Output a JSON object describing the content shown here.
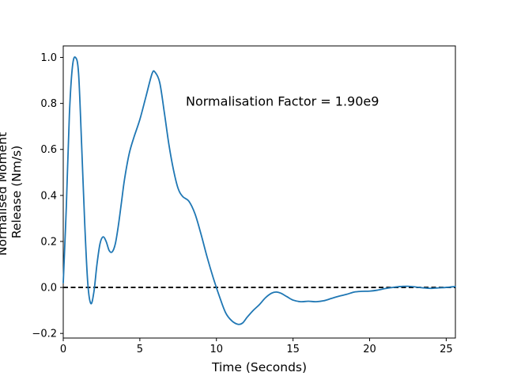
{
  "chart_data": {
    "type": "line",
    "title": "",
    "xlabel": "Time (Seconds)",
    "ylabel": [
      "Normalised Moment",
      "Release (Nm/s)"
    ],
    "xlim": [
      0,
      25.6
    ],
    "ylim": [
      -0.22,
      1.05
    ],
    "xticks": [
      0,
      5,
      10,
      15,
      20,
      25
    ],
    "yticks": [
      -0.2,
      0.0,
      0.2,
      0.4,
      0.6,
      0.8,
      1.0
    ],
    "xtick_labels": [
      "0",
      "5",
      "10",
      "15",
      "20",
      "25"
    ],
    "ytick_labels": [
      "−0.2",
      "0.0",
      "0.2",
      "0.4",
      "0.6",
      "0.8",
      "1.0"
    ],
    "grid": false,
    "annotation": {
      "text": "Normalisation Factor = 1.90e9",
      "x": 8.0,
      "y": 0.81
    },
    "reference_line": {
      "y": 0,
      "style": "dashed",
      "color": "#000000"
    },
    "series": [
      {
        "color": "#1f77b4",
        "x": [
          0,
          0.2,
          0.4,
          0.6,
          0.8,
          1.0,
          1.2,
          1.4,
          1.6,
          1.8,
          2.0,
          2.2,
          2.4,
          2.6,
          2.8,
          3.0,
          3.2,
          3.4,
          3.6,
          3.8,
          4.0,
          4.3,
          4.6,
          5.0,
          5.4,
          5.8,
          6.0,
          6.3,
          6.6,
          6.9,
          7.2,
          7.5,
          7.8,
          8.2,
          8.6,
          9.0,
          9.4,
          9.8,
          10.2,
          10.6,
          11.0,
          11.4,
          11.7,
          12.0,
          12.4,
          12.8,
          13.2,
          13.6,
          13.9,
          14.2,
          14.6,
          15.0,
          15.5,
          16.0,
          16.5,
          17.0,
          17.5,
          18.0,
          18.5,
          19.0,
          19.5,
          20.0,
          20.5,
          21.0,
          21.5,
          22.0,
          22.5,
          23.0,
          23.5,
          24.0,
          24.5,
          25.0,
          25.6
        ],
        "y": [
          0.02,
          0.35,
          0.75,
          0.96,
          1.0,
          0.93,
          0.62,
          0.28,
          0.02,
          -0.07,
          -0.02,
          0.1,
          0.19,
          0.22,
          0.2,
          0.16,
          0.155,
          0.19,
          0.27,
          0.37,
          0.47,
          0.58,
          0.65,
          0.73,
          0.83,
          0.93,
          0.935,
          0.89,
          0.76,
          0.62,
          0.51,
          0.43,
          0.395,
          0.375,
          0.32,
          0.23,
          0.13,
          0.04,
          -0.04,
          -0.11,
          -0.145,
          -0.16,
          -0.155,
          -0.13,
          -0.1,
          -0.075,
          -0.045,
          -0.025,
          -0.02,
          -0.025,
          -0.04,
          -0.055,
          -0.062,
          -0.06,
          -0.062,
          -0.058,
          -0.048,
          -0.038,
          -0.03,
          -0.02,
          -0.017,
          -0.016,
          -0.012,
          -0.005,
          0.0,
          0.004,
          0.005,
          0.002,
          -0.002,
          -0.004,
          -0.002,
          0.0,
          0.004
        ]
      }
    ]
  }
}
